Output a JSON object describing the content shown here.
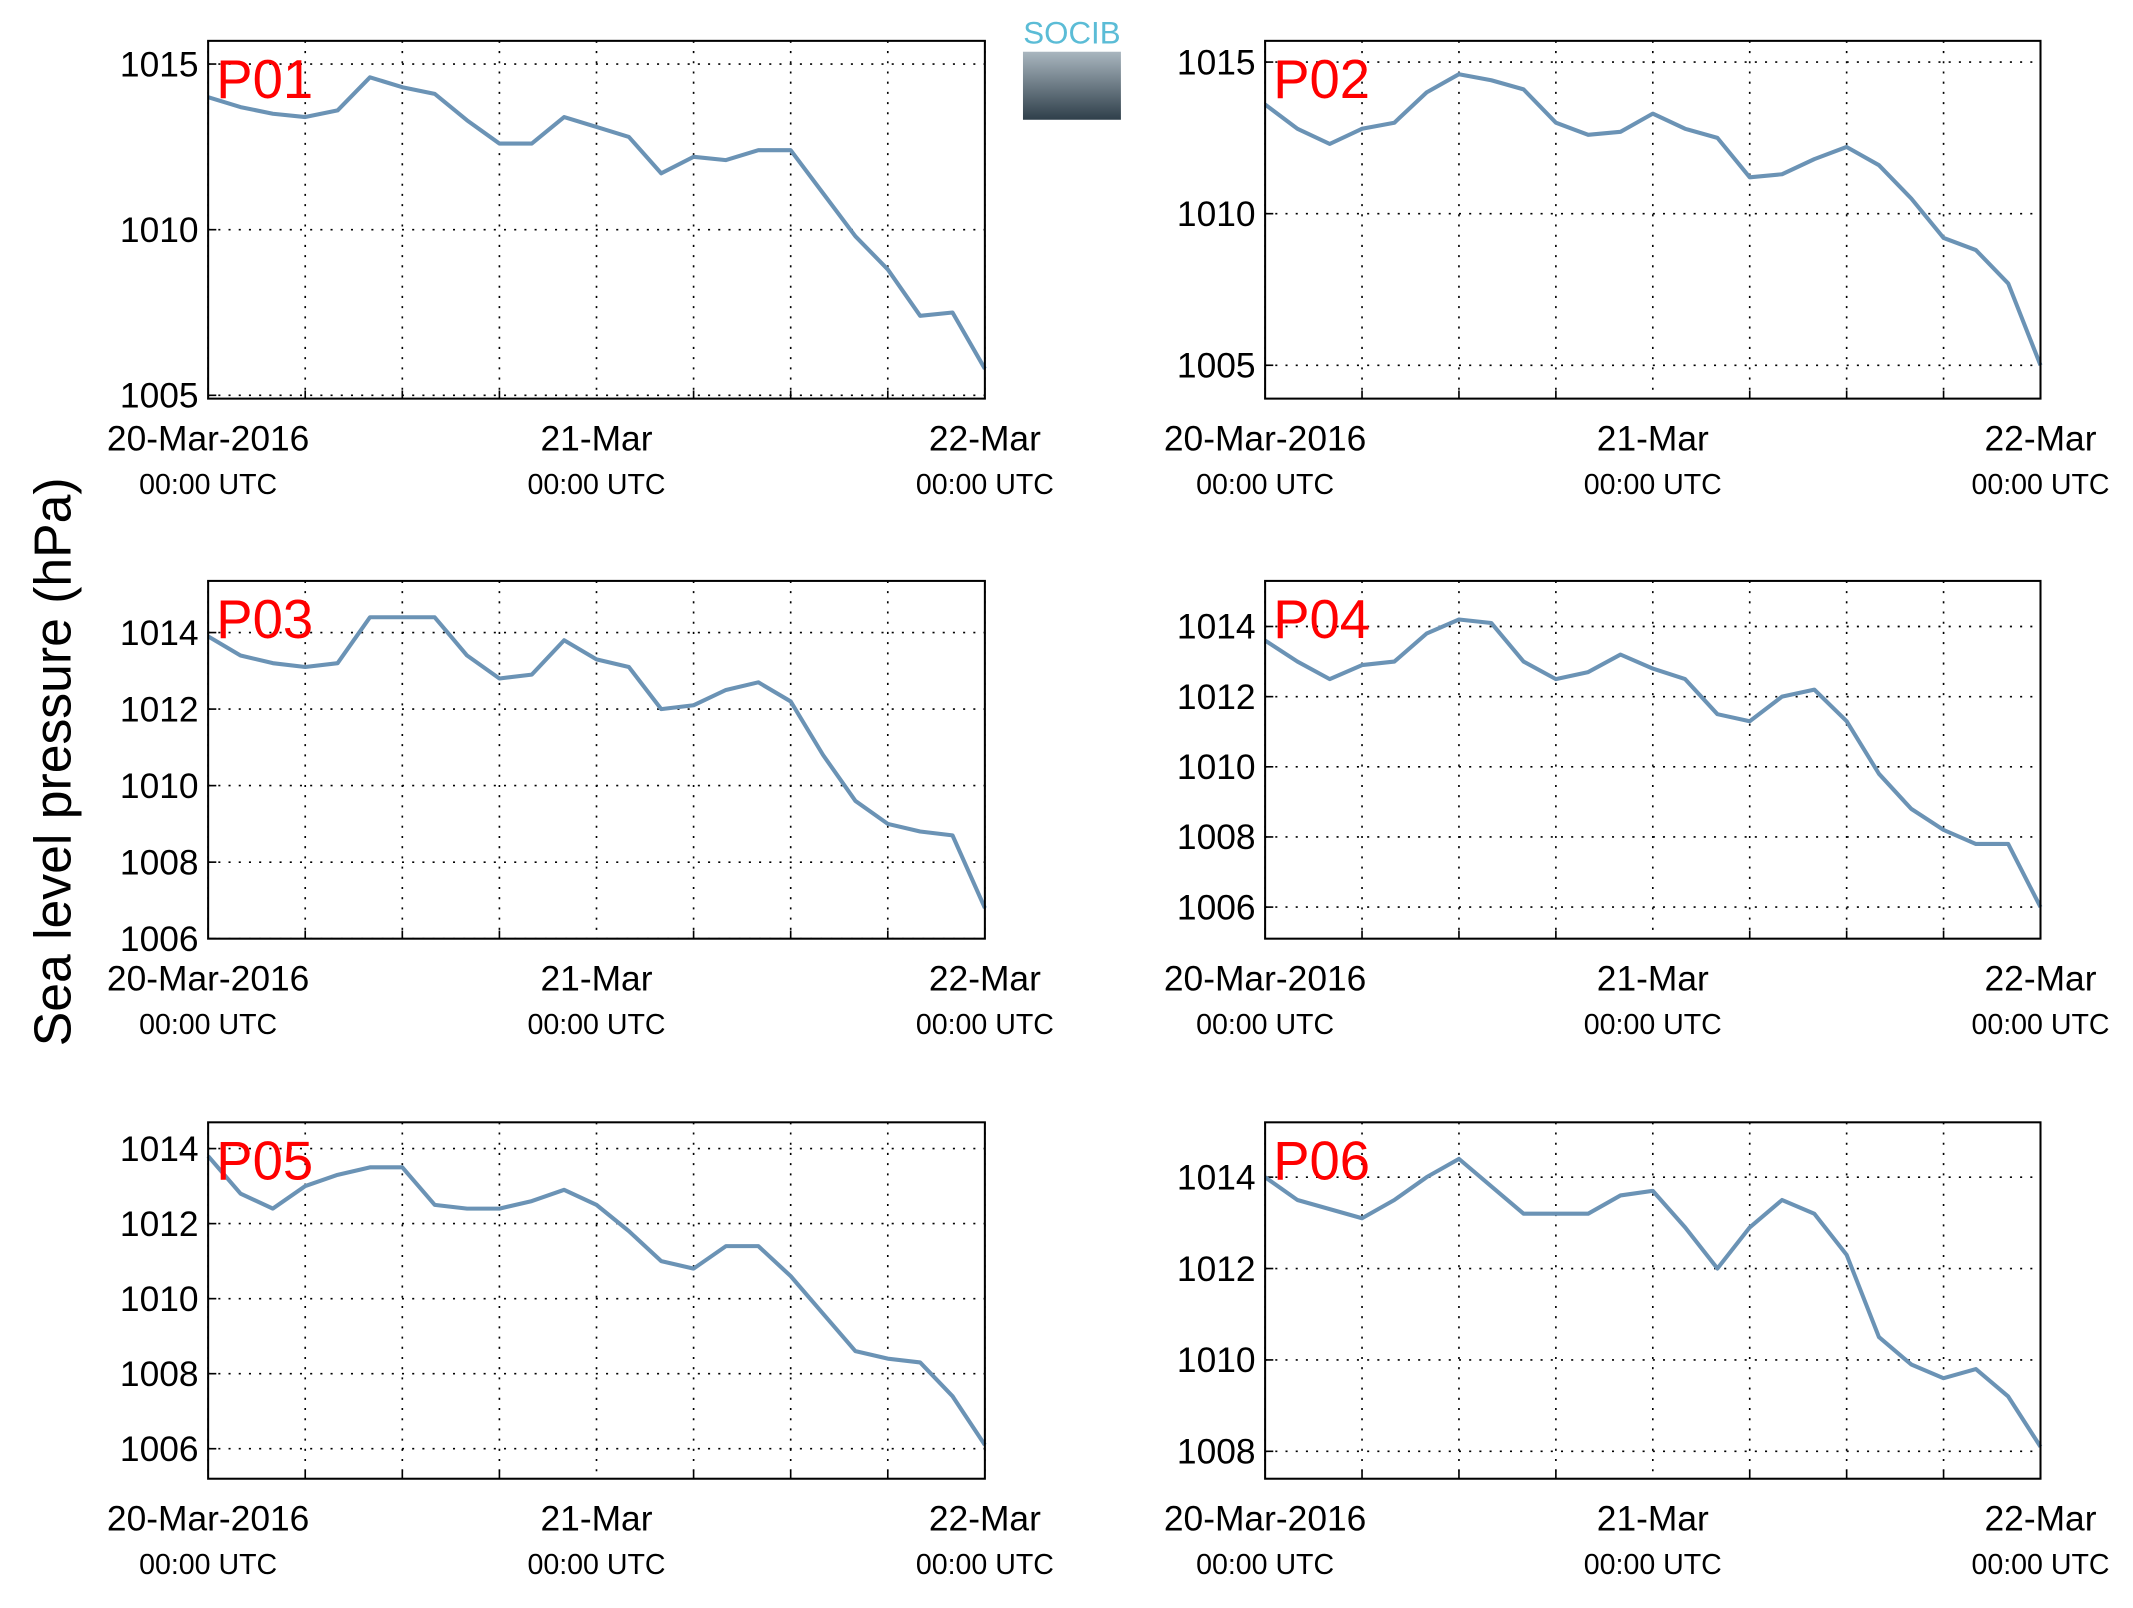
{
  "ylabel": "Sea level pressure (hPa)",
  "logo": "SOCIB",
  "chart_data": [
    {
      "type": "line",
      "title": "P01",
      "color": "#6b93b5",
      "grid": true,
      "x": [
        "2016-03-20T00:00",
        "2016-03-20T02:00",
        "2016-03-20T04:00",
        "2016-03-20T06:00",
        "2016-03-20T08:00",
        "2016-03-20T10:00",
        "2016-03-20T12:00",
        "2016-03-20T14:00",
        "2016-03-20T16:00",
        "2016-03-20T18:00",
        "2016-03-20T20:00",
        "2016-03-20T22:00",
        "2016-03-21T00:00",
        "2016-03-21T02:00",
        "2016-03-21T04:00",
        "2016-03-21T06:00",
        "2016-03-21T08:00",
        "2016-03-21T10:00",
        "2016-03-21T12:00",
        "2016-03-21T14:00",
        "2016-03-21T16:00",
        "2016-03-21T18:00",
        "2016-03-21T20:00",
        "2016-03-21T22:00",
        "2016-03-22T00:00"
      ],
      "values": [
        1014.0,
        1013.7,
        1013.5,
        1013.4,
        1013.6,
        1014.6,
        1014.3,
        1014.1,
        1013.3,
        1012.6,
        1012.6,
        1013.4,
        1013.1,
        1012.8,
        1011.7,
        1012.2,
        1012.1,
        1012.4,
        1012.4,
        1011.1,
        1009.8,
        1008.8,
        1007.4,
        1007.5,
        1005.8
      ],
      "xlim": [
        "2016-03-20T00:00",
        "2016-03-22T00:00"
      ],
      "ylim": [
        1004.9,
        1015.7
      ],
      "yticks": [
        1005,
        1010,
        1015
      ],
      "xticks": [
        {
          "value": "2016-03-20T00:00",
          "label": [
            "20-Mar-2016",
            "00:00 UTC"
          ]
        },
        {
          "value": "2016-03-21T00:00",
          "label": [
            "21-Mar",
            "00:00 UTC"
          ]
        },
        {
          "value": "2016-03-22T00:00",
          "label": [
            "22-Mar",
            "00:00 UTC"
          ]
        }
      ],
      "xminor": [
        "2016-03-20T06:00",
        "2016-03-20T12:00",
        "2016-03-20T18:00",
        "2016-03-21T06:00",
        "2016-03-21T12:00",
        "2016-03-21T18:00"
      ]
    },
    {
      "type": "line",
      "title": "P02",
      "color": "#6b93b5",
      "grid": true,
      "x": [
        "2016-03-20T00:00",
        "2016-03-20T02:00",
        "2016-03-20T04:00",
        "2016-03-20T06:00",
        "2016-03-20T08:00",
        "2016-03-20T10:00",
        "2016-03-20T12:00",
        "2016-03-20T14:00",
        "2016-03-20T16:00",
        "2016-03-20T18:00",
        "2016-03-20T20:00",
        "2016-03-20T22:00",
        "2016-03-21T00:00",
        "2016-03-21T02:00",
        "2016-03-21T04:00",
        "2016-03-21T06:00",
        "2016-03-21T08:00",
        "2016-03-21T10:00",
        "2016-03-21T12:00",
        "2016-03-21T14:00",
        "2016-03-21T16:00",
        "2016-03-21T18:00",
        "2016-03-21T20:00",
        "2016-03-21T22:00",
        "2016-03-22T00:00"
      ],
      "values": [
        1013.6,
        1012.8,
        1012.3,
        1012.8,
        1013.0,
        1014.0,
        1014.6,
        1014.4,
        1014.1,
        1013.0,
        1012.6,
        1012.7,
        1013.3,
        1012.8,
        1012.5,
        1011.2,
        1011.3,
        1011.8,
        1012.2,
        1011.6,
        1010.5,
        1009.2,
        1008.8,
        1007.7,
        1005.0
      ],
      "xlim": [
        "2016-03-20T00:00",
        "2016-03-22T00:00"
      ],
      "ylim": [
        1003.9,
        1015.7
      ],
      "yticks": [
        1005,
        1010,
        1015
      ],
      "xticks": [
        {
          "value": "2016-03-20T00:00",
          "label": [
            "20-Mar-2016",
            "00:00 UTC"
          ]
        },
        {
          "value": "2016-03-21T00:00",
          "label": [
            "21-Mar",
            "00:00 UTC"
          ]
        },
        {
          "value": "2016-03-22T00:00",
          "label": [
            "22-Mar",
            "00:00 UTC"
          ]
        }
      ],
      "xminor": [
        "2016-03-20T06:00",
        "2016-03-20T12:00",
        "2016-03-20T18:00",
        "2016-03-21T06:00",
        "2016-03-21T12:00",
        "2016-03-21T18:00"
      ]
    },
    {
      "type": "line",
      "title": "P03",
      "color": "#6b93b5",
      "grid": true,
      "x": [
        "2016-03-20T00:00",
        "2016-03-20T02:00",
        "2016-03-20T04:00",
        "2016-03-20T06:00",
        "2016-03-20T08:00",
        "2016-03-20T10:00",
        "2016-03-20T12:00",
        "2016-03-20T14:00",
        "2016-03-20T16:00",
        "2016-03-20T18:00",
        "2016-03-20T20:00",
        "2016-03-20T22:00",
        "2016-03-21T00:00",
        "2016-03-21T02:00",
        "2016-03-21T04:00",
        "2016-03-21T06:00",
        "2016-03-21T08:00",
        "2016-03-21T10:00",
        "2016-03-21T12:00",
        "2016-03-21T14:00",
        "2016-03-21T16:00",
        "2016-03-21T18:00",
        "2016-03-21T20:00",
        "2016-03-21T22:00",
        "2016-03-22T00:00"
      ],
      "values": [
        1013.9,
        1013.4,
        1013.2,
        1013.1,
        1013.2,
        1014.4,
        1014.4,
        1014.4,
        1013.4,
        1012.8,
        1012.9,
        1013.8,
        1013.3,
        1013.1,
        1012.0,
        1012.1,
        1012.5,
        1012.7,
        1012.2,
        1010.8,
        1009.6,
        1009.0,
        1008.8,
        1008.7,
        1006.8
      ],
      "xlim": [
        "2016-03-20T00:00",
        "2016-03-22T00:00"
      ],
      "ylim": [
        1006,
        1015.35
      ],
      "yticks": [
        1006,
        1008,
        1010,
        1012,
        1014
      ],
      "xticks": [
        {
          "value": "2016-03-20T00:00",
          "label": [
            "20-Mar-2016",
            "00:00 UTC"
          ]
        },
        {
          "value": "2016-03-21T00:00",
          "label": [
            "21-Mar",
            "00:00 UTC"
          ]
        },
        {
          "value": "2016-03-22T00:00",
          "label": [
            "22-Mar",
            "00:00 UTC"
          ]
        }
      ],
      "xminor": [
        "2016-03-20T06:00",
        "2016-03-20T12:00",
        "2016-03-20T18:00",
        "2016-03-21T06:00",
        "2016-03-21T12:00",
        "2016-03-21T18:00"
      ]
    },
    {
      "type": "line",
      "title": "P04",
      "color": "#6b93b5",
      "grid": true,
      "x": [
        "2016-03-20T00:00",
        "2016-03-20T02:00",
        "2016-03-20T04:00",
        "2016-03-20T06:00",
        "2016-03-20T08:00",
        "2016-03-20T10:00",
        "2016-03-20T12:00",
        "2016-03-20T14:00",
        "2016-03-20T16:00",
        "2016-03-20T18:00",
        "2016-03-20T20:00",
        "2016-03-20T22:00",
        "2016-03-21T00:00",
        "2016-03-21T02:00",
        "2016-03-21T04:00",
        "2016-03-21T06:00",
        "2016-03-21T08:00",
        "2016-03-21T10:00",
        "2016-03-21T12:00",
        "2016-03-21T14:00",
        "2016-03-21T16:00",
        "2016-03-21T18:00",
        "2016-03-21T20:00",
        "2016-03-21T22:00",
        "2016-03-22T00:00"
      ],
      "values": [
        1013.6,
        1013.0,
        1012.5,
        1012.9,
        1013.0,
        1013.8,
        1014.2,
        1014.1,
        1013.0,
        1012.5,
        1012.7,
        1013.2,
        1012.8,
        1012.5,
        1011.5,
        1011.3,
        1012.0,
        1012.2,
        1011.3,
        1009.8,
        1008.8,
        1008.2,
        1007.8,
        1007.8,
        1006.0
      ],
      "xlim": [
        "2016-03-20T00:00",
        "2016-03-22T00:00"
      ],
      "ylim": [
        1005.1,
        1015.3
      ],
      "yticks": [
        1006,
        1008,
        1010,
        1012,
        1014
      ],
      "xticks": [
        {
          "value": "2016-03-20T00:00",
          "label": [
            "20-Mar-2016",
            "00:00 UTC"
          ]
        },
        {
          "value": "2016-03-21T00:00",
          "label": [
            "21-Mar",
            "00:00 UTC"
          ]
        },
        {
          "value": "2016-03-22T00:00",
          "label": [
            "22-Mar",
            "00:00 UTC"
          ]
        }
      ],
      "xminor": [
        "2016-03-20T06:00",
        "2016-03-20T12:00",
        "2016-03-20T18:00",
        "2016-03-21T06:00",
        "2016-03-21T12:00",
        "2016-03-21T18:00"
      ]
    },
    {
      "type": "line",
      "title": "P05",
      "color": "#6b93b5",
      "grid": true,
      "x": [
        "2016-03-20T00:00",
        "2016-03-20T02:00",
        "2016-03-20T04:00",
        "2016-03-20T06:00",
        "2016-03-20T08:00",
        "2016-03-20T10:00",
        "2016-03-20T12:00",
        "2016-03-20T14:00",
        "2016-03-20T16:00",
        "2016-03-20T18:00",
        "2016-03-20T20:00",
        "2016-03-20T22:00",
        "2016-03-21T00:00",
        "2016-03-21T02:00",
        "2016-03-21T04:00",
        "2016-03-21T06:00",
        "2016-03-21T08:00",
        "2016-03-21T10:00",
        "2016-03-21T12:00",
        "2016-03-21T14:00",
        "2016-03-21T16:00",
        "2016-03-21T18:00",
        "2016-03-21T20:00",
        "2016-03-21T22:00",
        "2016-03-22T00:00"
      ],
      "values": [
        1013.8,
        1012.8,
        1012.4,
        1013.0,
        1013.3,
        1013.5,
        1013.5,
        1012.5,
        1012.4,
        1012.4,
        1012.6,
        1012.9,
        1012.5,
        1011.8,
        1011.0,
        1010.8,
        1011.4,
        1011.4,
        1010.6,
        1009.6,
        1008.6,
        1008.4,
        1008.3,
        1007.4,
        1006.1
      ],
      "xlim": [
        "2016-03-20T00:00",
        "2016-03-22T00:00"
      ],
      "ylim": [
        1005.2,
        1014.7
      ],
      "yticks": [
        1006,
        1008,
        1010,
        1012,
        1014
      ],
      "xticks": [
        {
          "value": "2016-03-20T00:00",
          "label": [
            "20-Mar-2016",
            "00:00 UTC"
          ]
        },
        {
          "value": "2016-03-21T00:00",
          "label": [
            "21-Mar",
            "00:00 UTC"
          ]
        },
        {
          "value": "2016-03-22T00:00",
          "label": [
            "22-Mar",
            "00:00 UTC"
          ]
        }
      ],
      "xminor": [
        "2016-03-20T06:00",
        "2016-03-20T12:00",
        "2016-03-20T18:00",
        "2016-03-21T06:00",
        "2016-03-21T12:00",
        "2016-03-21T18:00"
      ]
    },
    {
      "type": "line",
      "title": "P06",
      "color": "#6b93b5",
      "grid": true,
      "x": [
        "2016-03-20T00:00",
        "2016-03-20T02:00",
        "2016-03-20T04:00",
        "2016-03-20T06:00",
        "2016-03-20T08:00",
        "2016-03-20T10:00",
        "2016-03-20T12:00",
        "2016-03-20T14:00",
        "2016-03-20T16:00",
        "2016-03-20T18:00",
        "2016-03-20T20:00",
        "2016-03-20T22:00",
        "2016-03-21T00:00",
        "2016-03-21T02:00",
        "2016-03-21T04:00",
        "2016-03-21T06:00",
        "2016-03-21T08:00",
        "2016-03-21T10:00",
        "2016-03-21T12:00",
        "2016-03-21T14:00",
        "2016-03-21T16:00",
        "2016-03-21T18:00",
        "2016-03-21T20:00",
        "2016-03-21T22:00",
        "2016-03-22T00:00"
      ],
      "values": [
        1014.0,
        1013.5,
        1013.3,
        1013.1,
        1013.5,
        1014.0,
        1014.4,
        1013.8,
        1013.2,
        1013.2,
        1013.2,
        1013.6,
        1013.7,
        1012.9,
        1012.0,
        1012.9,
        1013.5,
        1013.2,
        1012.3,
        1010.5,
        1009.9,
        1009.6,
        1009.8,
        1009.2,
        1008.1
      ],
      "xlim": [
        "2016-03-20T00:00",
        "2016-03-22T00:00"
      ],
      "ylim": [
        1007.4,
        1015.2
      ],
      "yticks": [
        1008,
        1010,
        1012,
        1014
      ],
      "xticks": [
        {
          "value": "2016-03-20T00:00",
          "label": [
            "20-Mar-2016",
            "00:00 UTC"
          ]
        },
        {
          "value": "2016-03-21T00:00",
          "label": [
            "21-Mar",
            "00:00 UTC"
          ]
        },
        {
          "value": "2016-03-22T00:00",
          "label": [
            "22-Mar",
            "00:00 UTC"
          ]
        }
      ],
      "xminor": [
        "2016-03-20T06:00",
        "2016-03-20T12:00",
        "2016-03-20T18:00",
        "2016-03-21T06:00",
        "2016-03-21T12:00",
        "2016-03-21T18:00"
      ]
    }
  ]
}
